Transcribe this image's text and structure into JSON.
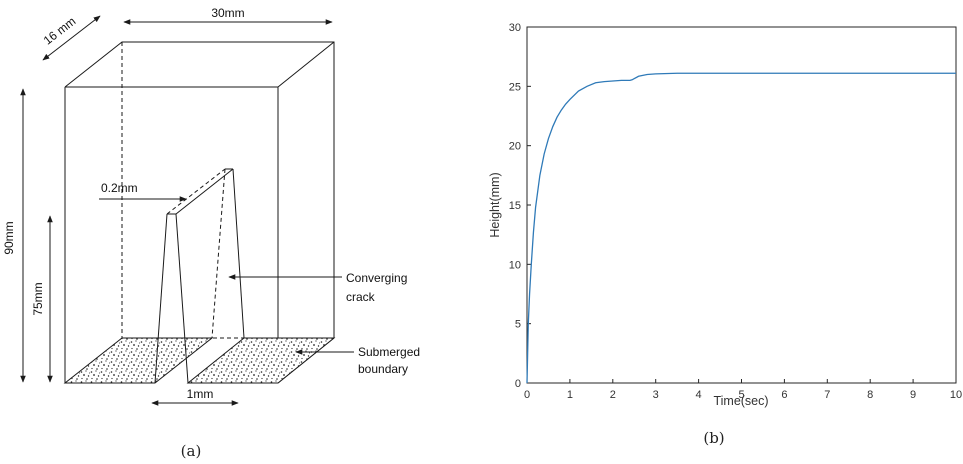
{
  "panel_a": {
    "dim_width": "30mm",
    "dim_depth": "16 mm",
    "dim_height": "90mm",
    "dim_crack_height": "75mm",
    "dim_crack_top": "0.2mm",
    "dim_crack_bottom": "1mm",
    "label_crack_line1": "Converging",
    "label_crack_line2": "crack",
    "label_boundary_line1": "Submerged",
    "label_boundary_line2": "boundary",
    "caption": "(a)"
  },
  "panel_b": {
    "caption": "(b)"
  },
  "chart_data": {
    "type": "line",
    "xlabel": "Time(sec)",
    "ylabel": "Height(mm)",
    "xlim": [
      0,
      10
    ],
    "ylim": [
      0,
      30
    ],
    "xticks": [
      "0",
      "1",
      "2",
      "3",
      "4",
      "5",
      "6",
      "7",
      "8",
      "9",
      "10"
    ],
    "yticks": [
      "0",
      "5",
      "10",
      "15",
      "20",
      "25",
      "30"
    ],
    "grid": false,
    "series": [
      {
        "color": "#2f7ab8",
        "x": [
          0,
          0.03,
          0.06,
          0.1,
          0.15,
          0.2,
          0.3,
          0.4,
          0.5,
          0.6,
          0.7,
          0.8,
          0.9,
          1.0,
          1.2,
          1.4,
          1.6,
          1.8,
          2.0,
          2.2,
          2.4,
          2.45,
          2.6,
          2.8,
          3.0,
          3.5,
          4.0,
          5.0,
          6.0,
          7.0,
          8.0,
          9.0,
          10.0
        ],
        "y": [
          0,
          5.0,
          7.5,
          10.0,
          12.7,
          14.8,
          17.5,
          19.3,
          20.6,
          21.6,
          22.4,
          23.0,
          23.5,
          23.9,
          24.6,
          25.0,
          25.3,
          25.4,
          25.45,
          25.5,
          25.5,
          25.55,
          25.85,
          26.0,
          26.05,
          26.1,
          26.1,
          26.1,
          26.1,
          26.1,
          26.1,
          26.1,
          26.1
        ]
      }
    ]
  }
}
